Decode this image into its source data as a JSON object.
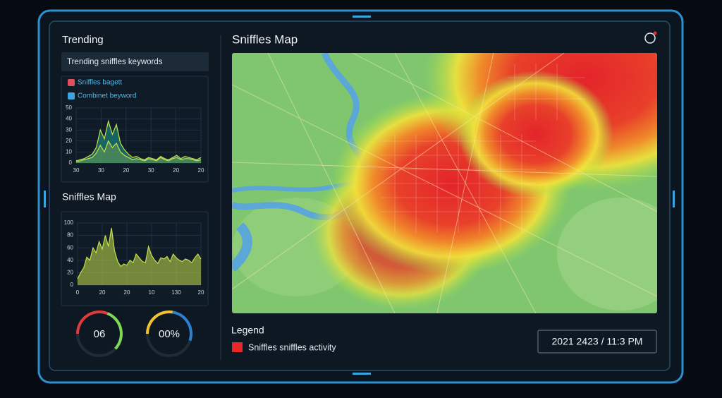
{
  "sidebar": {
    "trending_title": "Trending",
    "keywords_box": "Trending sniffles keywords",
    "trend_chart": {
      "type": "area",
      "series": [
        {
          "name": "Sniffles bagett",
          "color": "#1f9e8f",
          "icon": "#e0505a",
          "values": [
            2,
            3,
            4,
            6,
            8,
            14,
            30,
            22,
            38,
            26,
            35,
            18,
            12,
            8,
            5,
            6,
            4,
            3,
            5,
            4,
            3,
            6,
            4,
            3,
            5,
            7,
            4,
            6,
            5,
            4,
            3,
            5
          ]
        },
        {
          "name": "Combinet beyword",
          "color": "#c8e04a",
          "icon": "#3aa6e0",
          "values": [
            1,
            2,
            3,
            4,
            5,
            9,
            16,
            10,
            20,
            14,
            18,
            10,
            7,
            5,
            3,
            4,
            3,
            2,
            4,
            3,
            2,
            5,
            3,
            2,
            4,
            5,
            3,
            4,
            4,
            3,
            2,
            3
          ]
        }
      ],
      "ylim": [
        0,
        50
      ],
      "yticks": [
        0,
        10,
        20,
        30,
        40,
        50
      ],
      "xlabels": [
        "30",
        "30",
        "20",
        "30",
        "20",
        "20"
      ]
    },
    "map_title": "Sniffles Map",
    "map_chart": {
      "type": "area",
      "series": [
        {
          "name": null,
          "color": "#c8e04a",
          "values": [
            10,
            20,
            28,
            45,
            40,
            60,
            52,
            70,
            58,
            80,
            62,
            92,
            55,
            38,
            30,
            34,
            32,
            40,
            36,
            50,
            44,
            38,
            36,
            62,
            48,
            40,
            35,
            44,
            42,
            46,
            38,
            50,
            44,
            40,
            38,
            42,
            40,
            36,
            44,
            50,
            42
          ]
        }
      ],
      "ylim": [
        0,
        100
      ],
      "yticks": [
        0,
        20,
        40,
        60,
        80,
        100
      ],
      "xlabels": [
        "0",
        "20",
        "20",
        "10",
        "130",
        "20"
      ]
    },
    "gauges": [
      {
        "label": "06",
        "value": 62,
        "colors": [
          "#e03a3a",
          "#7ed957"
        ]
      },
      {
        "label": "00%",
        "value": 55,
        "colors": [
          "#f2c230",
          "#2f7fd0"
        ]
      }
    ]
  },
  "main": {
    "title": "Sniffles Map",
    "legend_title": "Legend",
    "legend_item": "Sniffles sniffles activity",
    "legend_color": "#e8262a",
    "timestamp": "2021 2423 / 11:3 PM"
  }
}
